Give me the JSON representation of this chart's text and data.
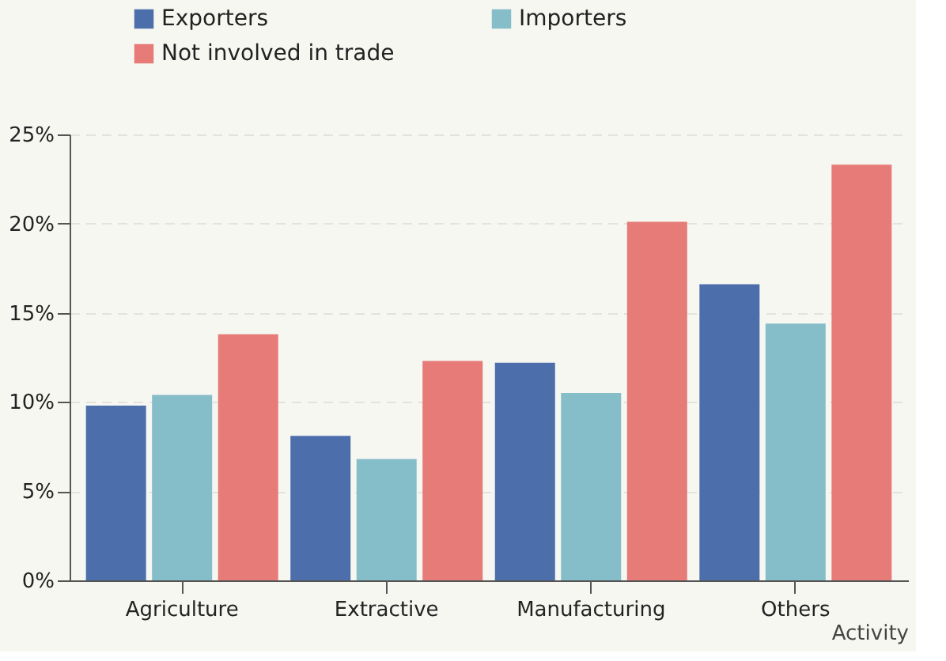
{
  "chart_data": {
    "type": "bar",
    "xlabel": "Activity",
    "categories": [
      "Agriculture",
      "Extractive",
      "Manufacturing",
      "Others"
    ],
    "series": [
      {
        "name": "Exporters",
        "color": "#4c6fac",
        "values": [
          9.8,
          8.1,
          12.2,
          16.6
        ]
      },
      {
        "name": "Importers",
        "color": "#85bdc9",
        "values": [
          10.4,
          6.8,
          10.5,
          14.4
        ]
      },
      {
        "name": "Not involved in trade",
        "color": "#e67b77",
        "values": [
          13.8,
          12.3,
          20.1,
          23.3
        ]
      }
    ],
    "ylim": [
      0,
      25
    ],
    "yticks": [
      {
        "value": 0,
        "label": "0%"
      },
      {
        "value": 5,
        "label": "5%"
      },
      {
        "value": 10,
        "label": "10%"
      },
      {
        "value": 15,
        "label": "15%"
      },
      {
        "value": 20,
        "label": "20%"
      },
      {
        "value": 25,
        "label": "25%"
      }
    ],
    "grid": "y",
    "legend": "top left"
  }
}
